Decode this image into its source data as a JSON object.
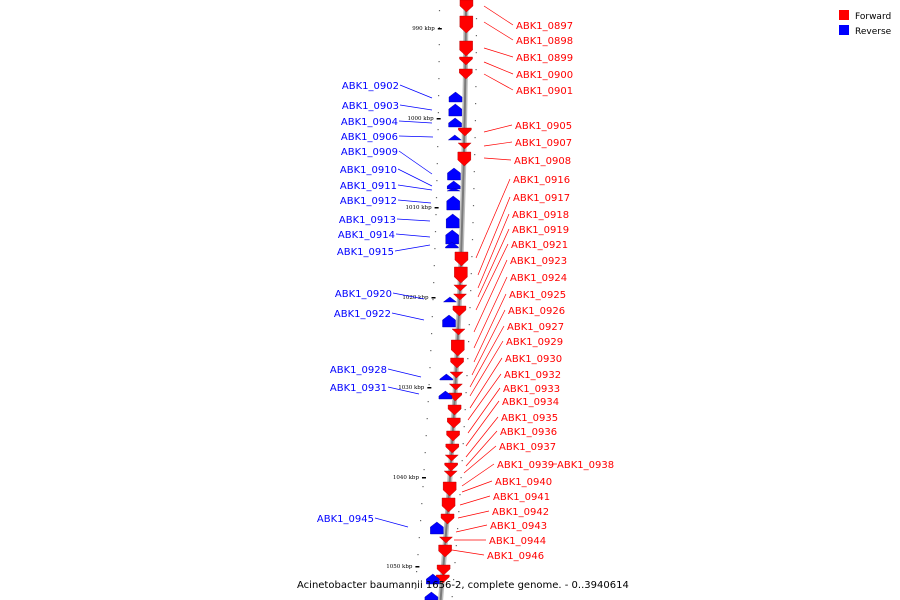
{
  "caption": "Acinetobacter baumannii 1656-2, complete genome. - 0..3940614",
  "legend": [
    {
      "label": "Forward",
      "color": "#ff0000"
    },
    {
      "label": "Reverse",
      "color": "#0000ff"
    }
  ],
  "colors": {
    "forward": "#ff0000",
    "reverse": "#0000ff",
    "axis": "#7a7a7a"
  },
  "ticks": [
    "990 kbp",
    "1000 kbp",
    "1010 kbp",
    "1020 kbp",
    "1030 kbp",
    "1040 kbp",
    "1050 kbp"
  ],
  "genes_forward": [
    "ABK1_0897",
    "ABK1_0898",
    "ABK1_0899",
    "ABK1_0900",
    "ABK1_0901",
    "ABK1_0905",
    "ABK1_0907",
    "ABK1_0908",
    "ABK1_0916",
    "ABK1_0917",
    "ABK1_0918",
    "ABK1_0919",
    "ABK1_0921",
    "ABK1_0923",
    "ABK1_0924",
    "ABK1_0925",
    "ABK1_0926",
    "ABK1_0927",
    "ABK1_0929",
    "ABK1_0930",
    "ABK1_0932",
    "ABK1_0933",
    "ABK1_0934",
    "ABK1_0935",
    "ABK1_0936",
    "ABK1_0937",
    "ABK1_0939",
    "ABK1_0938",
    "ABK1_0940",
    "ABK1_0941",
    "ABK1_0942",
    "ABK1_0943",
    "ABK1_0944",
    "ABK1_0946"
  ],
  "genes_reverse": [
    "ABK1_0902",
    "ABK1_0903",
    "ABK1_0904",
    "ABK1_0906",
    "ABK1_0909",
    "ABK1_0910",
    "ABK1_0911",
    "ABK1_0912",
    "ABK1_0913",
    "ABK1_0914",
    "ABK1_0915",
    "ABK1_0920",
    "ABK1_0922",
    "ABK1_0928",
    "ABK1_0931",
    "ABK1_0945"
  ]
}
